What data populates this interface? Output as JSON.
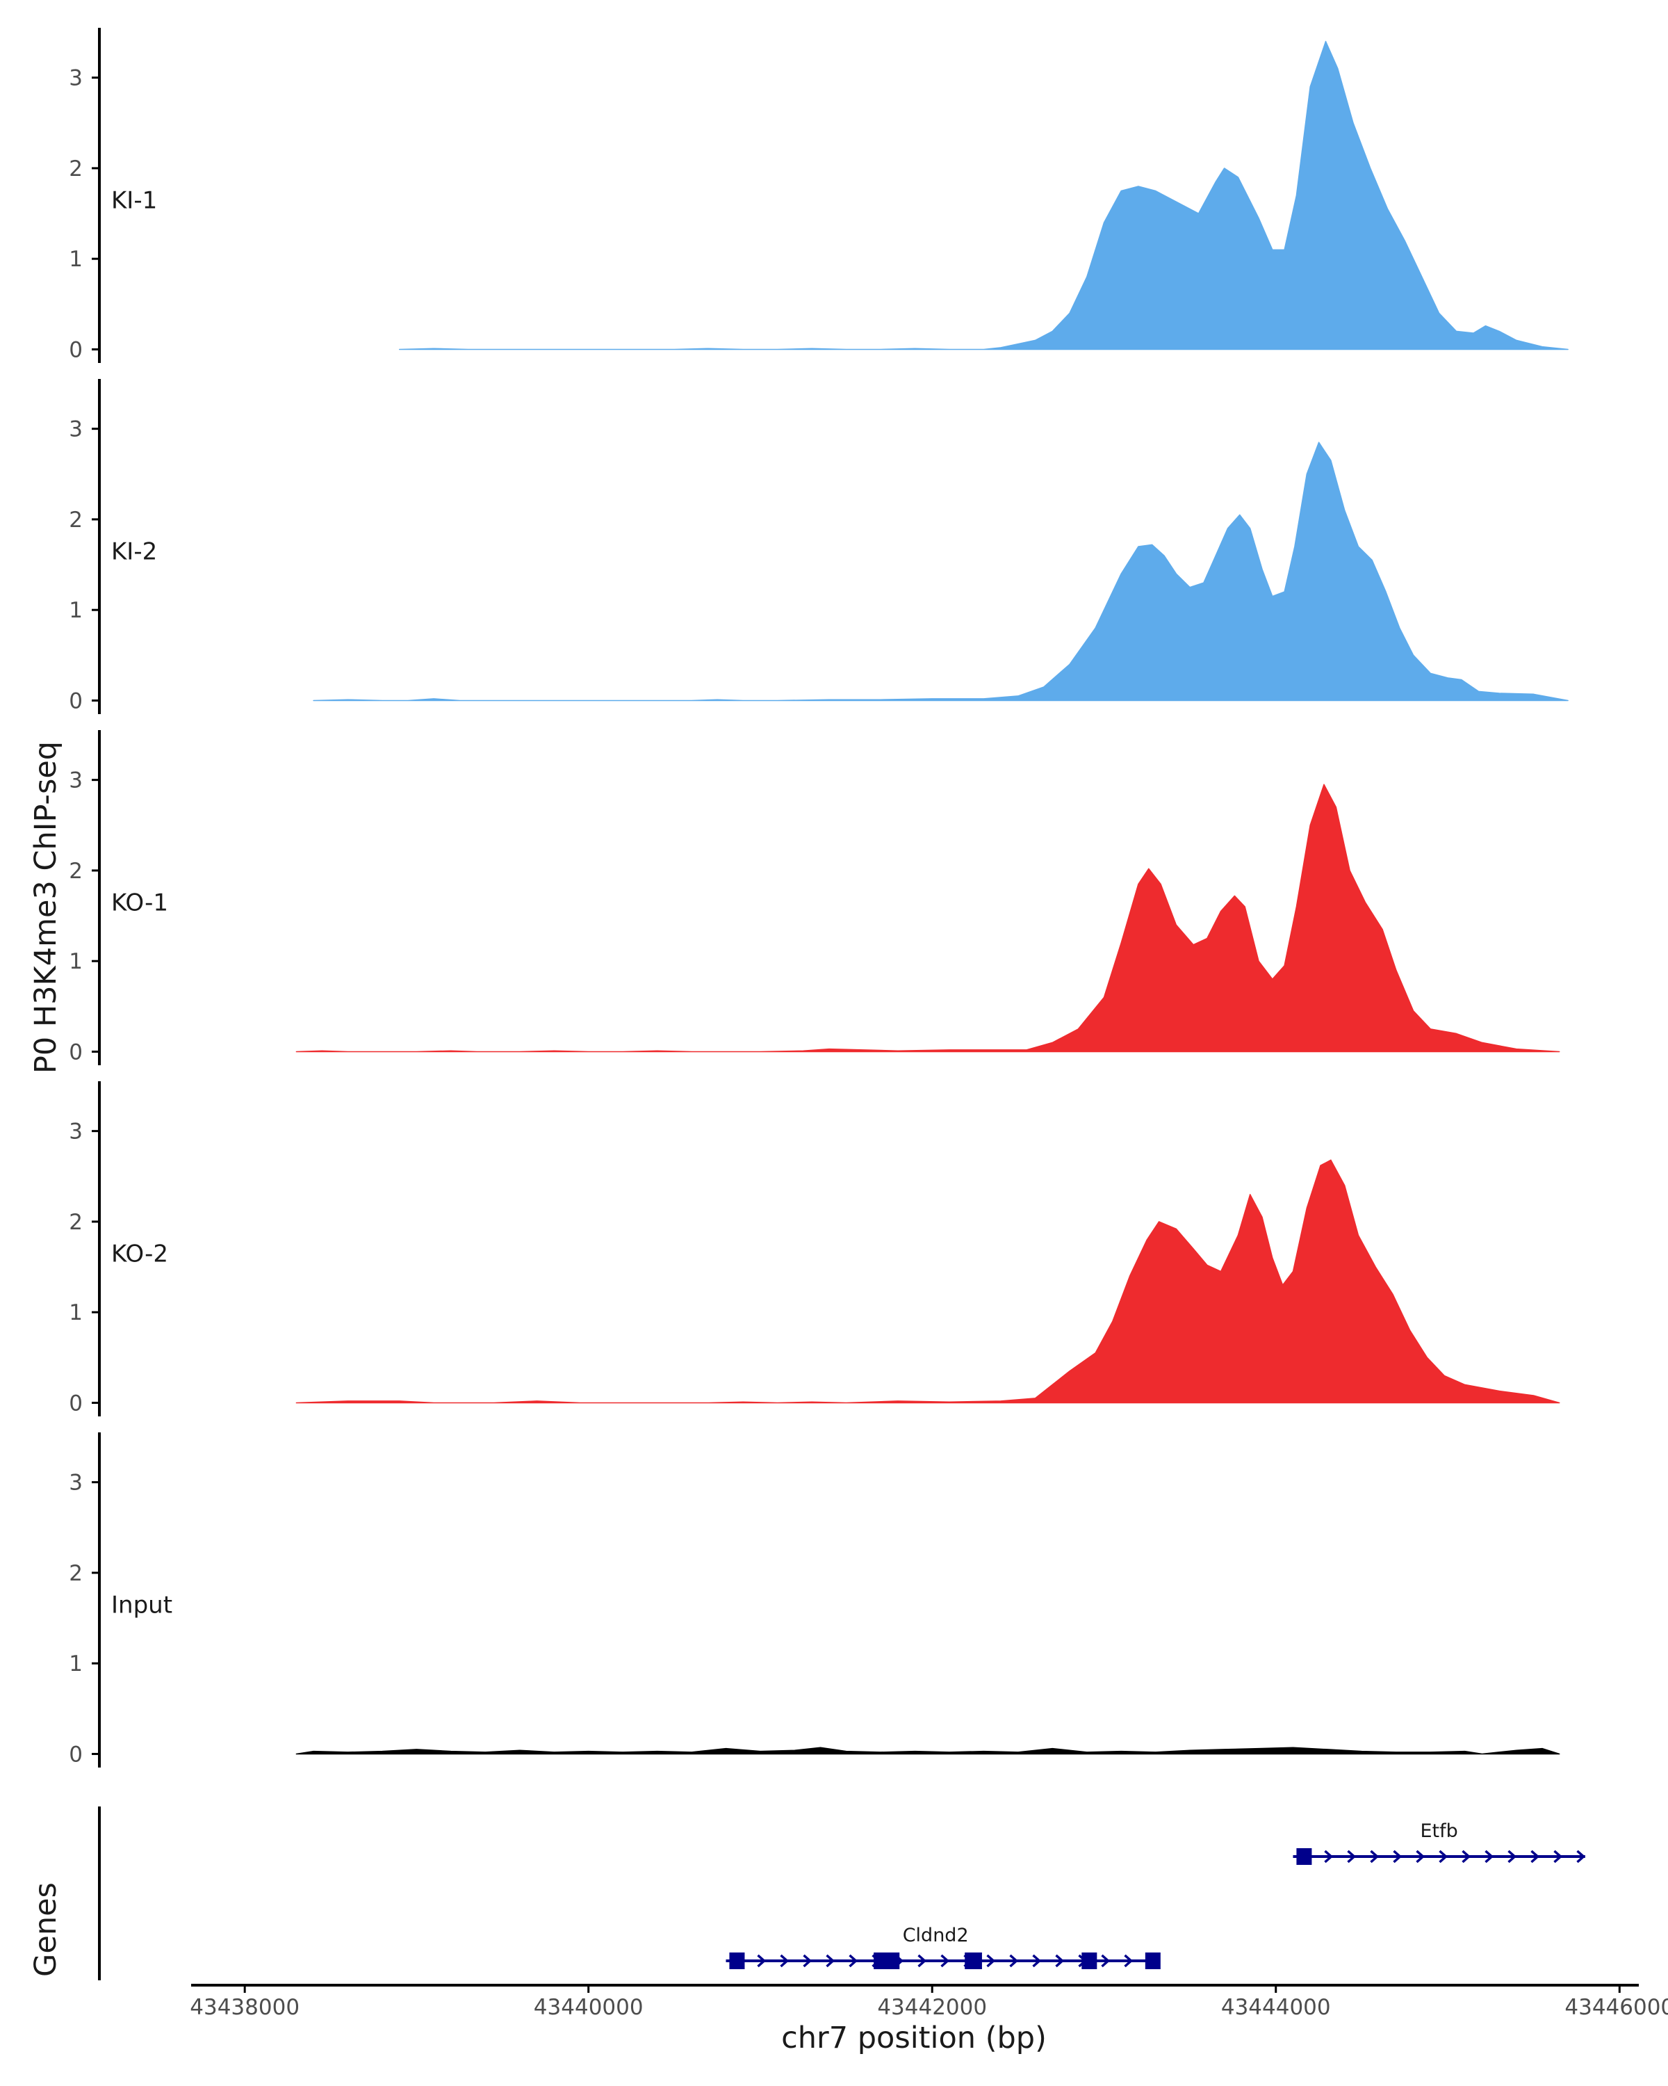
{
  "chart_data": {
    "type": "area",
    "title": "",
    "ylabel": "P0 H3K4me3 ChIP-seq",
    "xlabel": "chr7 position (bp)",
    "genes_label": "Genes",
    "ylim": [
      -0.15,
      3.55
    ],
    "yticks": [
      0,
      1,
      2,
      3
    ],
    "xlim": [
      43437700,
      43446100
    ],
    "xticks": [
      43438000,
      43440000,
      43442000,
      43444000,
      43446000
    ],
    "xtick_labels": [
      "43438000",
      "43440000",
      "43442000",
      "43444000",
      "43446000"
    ],
    "colors": {
      "KI": "#5eabeb",
      "KO": "#ee2b2e",
      "Input": "#000000",
      "gene": "#00008b",
      "axis": "#000000"
    },
    "series": [
      {
        "name": "KI-1",
        "color": "#5eabeb",
        "points": [
          [
            43438900,
            0
          ],
          [
            43439100,
            0.01
          ],
          [
            43439300,
            0
          ],
          [
            43439500,
            0
          ],
          [
            43440500,
            0
          ],
          [
            43440700,
            0.01
          ],
          [
            43440900,
            0
          ],
          [
            43441100,
            0
          ],
          [
            43441300,
            0.01
          ],
          [
            43441500,
            0
          ],
          [
            43441700,
            0
          ],
          [
            43441900,
            0.01
          ],
          [
            43442100,
            0
          ],
          [
            43442300,
            0
          ],
          [
            43442400,
            0.02
          ],
          [
            43442500,
            0.06
          ],
          [
            43442600,
            0.1
          ],
          [
            43442700,
            0.2
          ],
          [
            43442800,
            0.4
          ],
          [
            43442900,
            0.8
          ],
          [
            43443000,
            1.4
          ],
          [
            43443100,
            1.75
          ],
          [
            43443200,
            1.8
          ],
          [
            43443300,
            1.75
          ],
          [
            43443400,
            1.65
          ],
          [
            43443550,
            1.5
          ],
          [
            43443650,
            1.85
          ],
          [
            43443700,
            2.0
          ],
          [
            43443780,
            1.9
          ],
          [
            43443900,
            1.45
          ],
          [
            43443980,
            1.1
          ],
          [
            43444050,
            1.1
          ],
          [
            43444120,
            1.7
          ],
          [
            43444200,
            2.9
          ],
          [
            43444290,
            3.4
          ],
          [
            43444360,
            3.1
          ],
          [
            43444450,
            2.5
          ],
          [
            43444550,
            2.0
          ],
          [
            43444650,
            1.55
          ],
          [
            43444750,
            1.2
          ],
          [
            43444850,
            0.8
          ],
          [
            43444950,
            0.4
          ],
          [
            43445050,
            0.2
          ],
          [
            43445150,
            0.18
          ],
          [
            43445220,
            0.26
          ],
          [
            43445300,
            0.2
          ],
          [
            43445400,
            0.1
          ],
          [
            43445550,
            0.03
          ],
          [
            43445700,
            0
          ]
        ]
      },
      {
        "name": "KI-2",
        "color": "#5eabeb",
        "points": [
          [
            43438400,
            0
          ],
          [
            43438600,
            0.01
          ],
          [
            43438800,
            0
          ],
          [
            43438950,
            0
          ],
          [
            43439100,
            0.02
          ],
          [
            43439250,
            0
          ],
          [
            43440600,
            0
          ],
          [
            43440750,
            0.01
          ],
          [
            43440900,
            0
          ],
          [
            43441100,
            0
          ],
          [
            43441400,
            0.01
          ],
          [
            43441700,
            0.01
          ],
          [
            43442000,
            0.02
          ],
          [
            43442300,
            0.02
          ],
          [
            43442500,
            0.05
          ],
          [
            43442650,
            0.15
          ],
          [
            43442800,
            0.4
          ],
          [
            43442950,
            0.8
          ],
          [
            43443100,
            1.4
          ],
          [
            43443200,
            1.7
          ],
          [
            43443280,
            1.72
          ],
          [
            43443350,
            1.6
          ],
          [
            43443420,
            1.4
          ],
          [
            43443500,
            1.25
          ],
          [
            43443580,
            1.3
          ],
          [
            43443650,
            1.6
          ],
          [
            43443720,
            1.9
          ],
          [
            43443790,
            2.05
          ],
          [
            43443850,
            1.9
          ],
          [
            43443920,
            1.45
          ],
          [
            43443980,
            1.15
          ],
          [
            43444050,
            1.2
          ],
          [
            43444110,
            1.7
          ],
          [
            43444180,
            2.5
          ],
          [
            43444250,
            2.85
          ],
          [
            43444320,
            2.65
          ],
          [
            43444400,
            2.1
          ],
          [
            43444480,
            1.7
          ],
          [
            43444560,
            1.55
          ],
          [
            43444640,
            1.2
          ],
          [
            43444720,
            0.8
          ],
          [
            43444800,
            0.5
          ],
          [
            43444900,
            0.3
          ],
          [
            43445000,
            0.25
          ],
          [
            43445080,
            0.23
          ],
          [
            43445180,
            0.1
          ],
          [
            43445300,
            0.08
          ],
          [
            43445500,
            0.07
          ],
          [
            43445700,
            0
          ]
        ]
      },
      {
        "name": "KO-1",
        "color": "#ee2b2e",
        "points": [
          [
            43438300,
            0
          ],
          [
            43438450,
            0.01
          ],
          [
            43438600,
            0
          ],
          [
            43439000,
            0
          ],
          [
            43439200,
            0.01
          ],
          [
            43439350,
            0
          ],
          [
            43439600,
            0
          ],
          [
            43439800,
            0.01
          ],
          [
            43440000,
            0
          ],
          [
            43440200,
            0
          ],
          [
            43440400,
            0.01
          ],
          [
            43440600,
            0
          ],
          [
            43440900,
            0
          ],
          [
            43441000,
            0
          ],
          [
            43441250,
            0.01
          ],
          [
            43441400,
            0.03
          ],
          [
            43441600,
            0.02
          ],
          [
            43441800,
            0.01
          ],
          [
            43442100,
            0.02
          ],
          [
            43442350,
            0.02
          ],
          [
            43442550,
            0.02
          ],
          [
            43442700,
            0.1
          ],
          [
            43442850,
            0.25
          ],
          [
            43443000,
            0.6
          ],
          [
            43443100,
            1.2
          ],
          [
            43443200,
            1.85
          ],
          [
            43443260,
            2.02
          ],
          [
            43443330,
            1.85
          ],
          [
            43443420,
            1.4
          ],
          [
            43443520,
            1.18
          ],
          [
            43443600,
            1.25
          ],
          [
            43443680,
            1.55
          ],
          [
            43443760,
            1.72
          ],
          [
            43443820,
            1.6
          ],
          [
            43443900,
            1.0
          ],
          [
            43443980,
            0.8
          ],
          [
            43444050,
            0.95
          ],
          [
            43444120,
            1.6
          ],
          [
            43444200,
            2.5
          ],
          [
            43444280,
            2.95
          ],
          [
            43444350,
            2.7
          ],
          [
            43444430,
            2.0
          ],
          [
            43444520,
            1.65
          ],
          [
            43444620,
            1.35
          ],
          [
            43444700,
            0.9
          ],
          [
            43444800,
            0.45
          ],
          [
            43444900,
            0.25
          ],
          [
            43445050,
            0.2
          ],
          [
            43445200,
            0.1
          ],
          [
            43445400,
            0.03
          ],
          [
            43445650,
            0
          ]
        ]
      },
      {
        "name": "KO-2",
        "color": "#ee2b2e",
        "points": [
          [
            43438300,
            0
          ],
          [
            43438600,
            0.02
          ],
          [
            43438900,
            0.02
          ],
          [
            43439100,
            0
          ],
          [
            43439450,
            0
          ],
          [
            43439700,
            0.02
          ],
          [
            43439950,
            0
          ],
          [
            43440700,
            0
          ],
          [
            43440900,
            0.01
          ],
          [
            43441100,
            0
          ],
          [
            43441300,
            0.01
          ],
          [
            43441500,
            0
          ],
          [
            43441800,
            0.02
          ],
          [
            43442100,
            0.01
          ],
          [
            43442400,
            0.02
          ],
          [
            43442600,
            0.05
          ],
          [
            43442700,
            0.2
          ],
          [
            43442800,
            0.35
          ],
          [
            43442950,
            0.55
          ],
          [
            43443050,
            0.9
          ],
          [
            43443150,
            1.4
          ],
          [
            43443250,
            1.8
          ],
          [
            43443320,
            2.0
          ],
          [
            43443420,
            1.92
          ],
          [
            43443520,
            1.7
          ],
          [
            43443600,
            1.52
          ],
          [
            43443680,
            1.45
          ],
          [
            43443780,
            1.85
          ],
          [
            43443850,
            2.3
          ],
          [
            43443920,
            2.05
          ],
          [
            43443980,
            1.6
          ],
          [
            43444040,
            1.3
          ],
          [
            43444100,
            1.45
          ],
          [
            43444180,
            2.15
          ],
          [
            43444260,
            2.62
          ],
          [
            43444320,
            2.68
          ],
          [
            43444400,
            2.4
          ],
          [
            43444480,
            1.85
          ],
          [
            43444580,
            1.5
          ],
          [
            43444680,
            1.2
          ],
          [
            43444780,
            0.8
          ],
          [
            43444880,
            0.5
          ],
          [
            43444980,
            0.3
          ],
          [
            43445100,
            0.2
          ],
          [
            43445300,
            0.13
          ],
          [
            43445500,
            0.08
          ],
          [
            43445650,
            0
          ]
        ]
      },
      {
        "name": "Input",
        "color": "#000000",
        "points": [
          [
            43438300,
            0
          ],
          [
            43438400,
            0.03
          ],
          [
            43438600,
            0.02
          ],
          [
            43438800,
            0.03
          ],
          [
            43439000,
            0.05
          ],
          [
            43439200,
            0.03
          ],
          [
            43439400,
            0.02
          ],
          [
            43439600,
            0.04
          ],
          [
            43439800,
            0.02
          ],
          [
            43440000,
            0.03
          ],
          [
            43440200,
            0.02
          ],
          [
            43440400,
            0.03
          ],
          [
            43440600,
            0.02
          ],
          [
            43440800,
            0.06
          ],
          [
            43441000,
            0.03
          ],
          [
            43441200,
            0.04
          ],
          [
            43441350,
            0.07
          ],
          [
            43441500,
            0.03
          ],
          [
            43441700,
            0.02
          ],
          [
            43441900,
            0.03
          ],
          [
            43442100,
            0.02
          ],
          [
            43442300,
            0.03
          ],
          [
            43442500,
            0.02
          ],
          [
            43442700,
            0.06
          ],
          [
            43442900,
            0.02
          ],
          [
            43443100,
            0.03
          ],
          [
            43443300,
            0.02
          ],
          [
            43443500,
            0.04
          ],
          [
            43443700,
            0.05
          ],
          [
            43443900,
            0.06
          ],
          [
            43444100,
            0.07
          ],
          [
            43444300,
            0.05
          ],
          [
            43444500,
            0.03
          ],
          [
            43444700,
            0.02
          ],
          [
            43444900,
            0.02
          ],
          [
            43445100,
            0.03
          ],
          [
            43445200,
            0.0
          ],
          [
            43445400,
            0.04
          ],
          [
            43445550,
            0.06
          ],
          [
            43445650,
            0
          ]
        ]
      }
    ],
    "genes": [
      {
        "name": "Cldnd2",
        "row": 0,
        "start": 43440800,
        "end": 43443280,
        "label_x": 43442020,
        "exons": [
          [
            43440820,
            43440880
          ],
          [
            43441660,
            43441810
          ],
          [
            43442190,
            43442290
          ],
          [
            43442870,
            43442950
          ],
          [
            43443240,
            43443300
          ]
        ]
      },
      {
        "name": "Etfb",
        "row": 1,
        "start": 43444100,
        "end": 43445800,
        "label_x": 43444950,
        "exons": [
          [
            43444120,
            43444200
          ]
        ]
      }
    ]
  }
}
